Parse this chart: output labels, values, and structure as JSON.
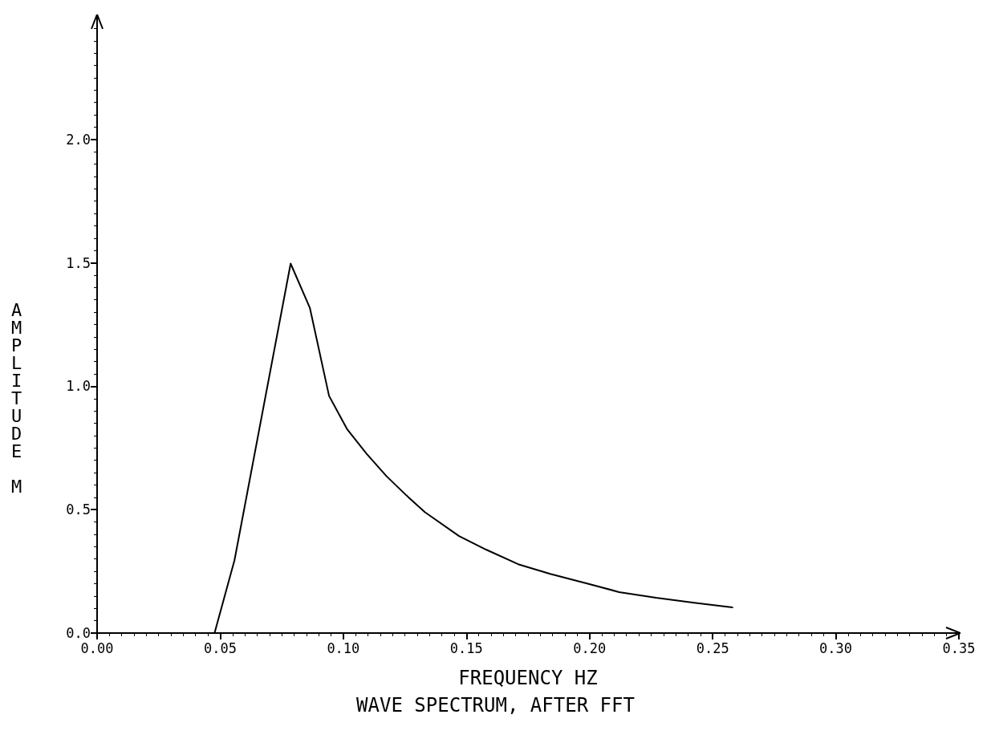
{
  "chart_data": {
    "type": "line",
    "title": "WAVE SPECTRUM, AFTER FFT",
    "xlabel": "FREQUENCY HZ",
    "ylabel": "AMPLITUDE M",
    "x": [
      0.0477,
      0.0558,
      0.0786,
      0.0864,
      0.0942,
      0.1016,
      0.1094,
      0.1175,
      0.1256,
      0.1331,
      0.147,
      0.158,
      0.171,
      0.184,
      0.199,
      0.212,
      0.227,
      0.2425,
      0.258
    ],
    "series": [
      {
        "color": "#000000",
        "values": [
          0,
          0.295,
          1.497,
          1.318,
          0.961,
          0.825,
          0.727,
          0.636,
          0.558,
          0.49,
          0.393,
          0.338,
          0.279,
          0.24,
          0.201,
          0.166,
          0.143,
          0.123,
          0.104
        ]
      }
    ],
    "xlim": [
      0,
      0.35
    ],
    "xticks": [
      {
        "value": 0,
        "label": "0.00"
      },
      {
        "value": 0.05,
        "label": "0.05"
      },
      {
        "value": 0.1,
        "label": "0.10"
      },
      {
        "value": 0.15,
        "label": "0.15"
      },
      {
        "value": 0.2,
        "label": "0.20"
      },
      {
        "value": 0.25,
        "label": "0.25"
      },
      {
        "value": 0.3,
        "label": "0.30"
      },
      {
        "value": 0.35,
        "label": "0.35"
      }
    ],
    "ylim": [
      0,
      2.5
    ],
    "yticks": [
      {
        "value": 0,
        "label": "0.0"
      },
      {
        "value": 0.5,
        "label": "0.5"
      },
      {
        "value": 1,
        "label": "1.0"
      },
      {
        "value": 1.5,
        "label": "1.5"
      },
      {
        "value": 2,
        "label": "2.0"
      }
    ],
    "grid": false,
    "marker": "none",
    "line_style": "solid"
  }
}
